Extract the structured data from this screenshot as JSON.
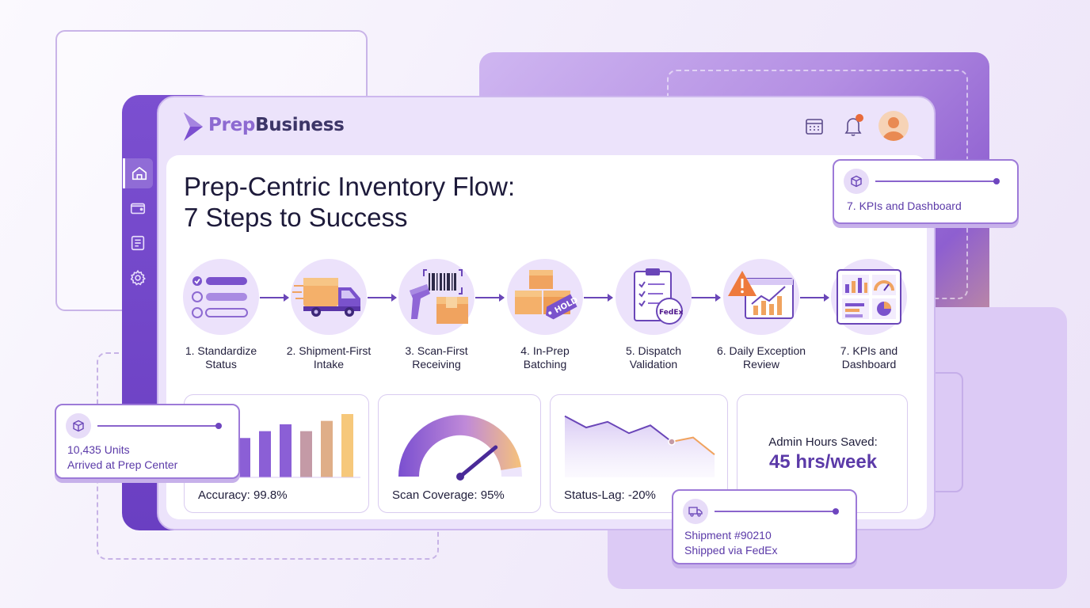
{
  "brand": {
    "prefix": "Prep",
    "suffix": "Business"
  },
  "page_title": {
    "line1": "Prep-Centric Inventory Flow:",
    "line2": "7 Steps to Success"
  },
  "sidebar": {
    "items": [
      {
        "icon": "home-icon",
        "active": true
      },
      {
        "icon": "wallet-icon",
        "active": false
      },
      {
        "icon": "document-icon",
        "active": false
      },
      {
        "icon": "gear-icon",
        "active": false
      }
    ]
  },
  "header_icons": [
    "calendar-icon",
    "bell-icon",
    "avatar"
  ],
  "colors": {
    "primary": "#6a3fc2",
    "accent": "#e86a3a",
    "lavender": "#ece2fb",
    "orange": "#f0a35f"
  },
  "steps": [
    {
      "line1": "1. Standardize",
      "line2": "Status",
      "icon": "checklist-icon"
    },
    {
      "line1": "2. Shipment-First",
      "line2": "Intake",
      "icon": "truck-icon"
    },
    {
      "line1": "3. Scan-First",
      "line2": "Receiving",
      "icon": "barcode-scanner-icon"
    },
    {
      "line1": "4. In-Prep",
      "line2": "Batching",
      "icon": "boxes-hold-tag-icon",
      "tag_text": "HOLD"
    },
    {
      "line1": "5. Dispatch",
      "line2": "Validation",
      "icon": "clipboard-fedex-icon",
      "badge_text": "FedEx"
    },
    {
      "line1": "6. Daily Exception",
      "line2": "Review",
      "icon": "warning-chart-icon"
    },
    {
      "line1": "7. KPIs and",
      "line2": "Dashboard",
      "icon": "dashboard-icon"
    }
  ],
  "metrics": {
    "accuracy": {
      "label": "Accuracy: 99.8%",
      "bars": [
        38,
        46,
        54,
        62,
        54,
        66,
        74
      ]
    },
    "scan_coverage": {
      "label": "Scan Coverage: 95%",
      "value": 0.95
    },
    "status_lag": {
      "label": "Status-Lag: -20%",
      "points": [
        86,
        70,
        78,
        62,
        73,
        50,
        56,
        32
      ]
    },
    "admin_hours": {
      "title": "Admin Hours Saved:",
      "value": "45 hrs/week"
    }
  },
  "toasts": {
    "kpi": {
      "text": "7. KPIs and Dashboard",
      "icon": "box-icon"
    },
    "units": {
      "line1": "10,435 Units",
      "line2": "Arrived at Prep Center",
      "icon": "box-icon"
    },
    "shipment": {
      "line1": "Shipment #90210",
      "line2": "Shipped via FedEx",
      "icon": "truck-icon"
    }
  }
}
